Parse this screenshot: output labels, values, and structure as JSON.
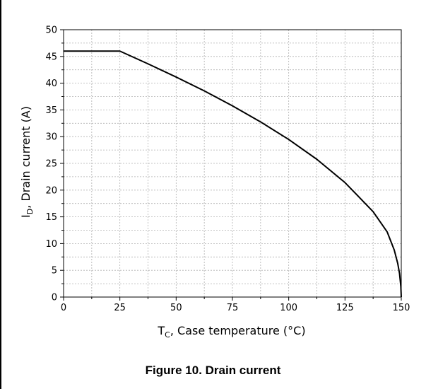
{
  "caption": "Figure 10. Drain current",
  "chart_data": {
    "type": "line",
    "title": "",
    "xlabel": {
      "main": "T",
      "sub": "C",
      "rest": ", Case temperature (°C)"
    },
    "ylabel": {
      "main": "I",
      "sub": "D",
      "rest": ", Drain current (A)"
    },
    "xlim": [
      0,
      150
    ],
    "ylim": [
      0,
      50
    ],
    "x_ticks": [
      0,
      25,
      50,
      75,
      100,
      125,
      150
    ],
    "y_ticks": [
      0,
      5,
      10,
      15,
      20,
      25,
      30,
      35,
      40,
      45,
      50
    ],
    "x_minor_step": 12.5,
    "y_minor_step": 2.5,
    "grid": true,
    "grid_style": "dotted",
    "series": [
      {
        "x": [
          0,
          25,
          37.5,
          50,
          62.5,
          75,
          87.5,
          100,
          112.5,
          125,
          137.5,
          143.75,
          146.88,
          148.44,
          149.22,
          149.8,
          150
        ],
        "y": [
          46.0,
          46.0,
          43.62,
          41.15,
          38.56,
          35.76,
          32.76,
          29.47,
          25.76,
          21.41,
          15.97,
          12.17,
          8.8,
          6.26,
          4.42,
          2.0,
          0
        ],
        "color": "#000000"
      }
    ]
  }
}
